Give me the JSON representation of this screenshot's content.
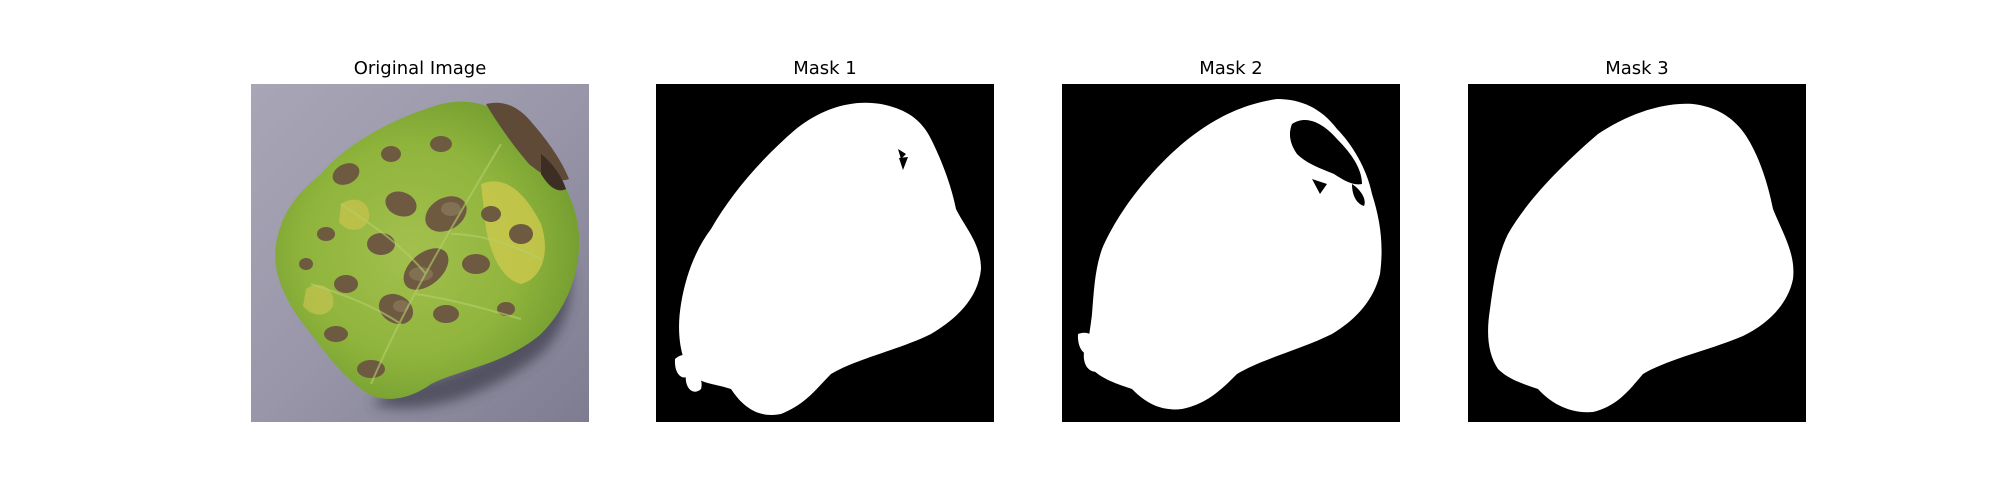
{
  "figure": {
    "panels": [
      {
        "title": "Original Image",
        "kind": "photo"
      },
      {
        "title": "Mask 1",
        "kind": "mask"
      },
      {
        "title": "Mask 2",
        "kind": "mask"
      },
      {
        "title": "Mask 3",
        "kind": "mask"
      }
    ]
  },
  "colors": {
    "background": "#ffffff",
    "mask_background": "#000000",
    "mask_foreground": "#ffffff",
    "leaf_green": "#8fb43c",
    "leaf_yellow": "#c8c84a",
    "lesion_brown": "#6e5a40",
    "surface_gray": "#9a98a8"
  }
}
